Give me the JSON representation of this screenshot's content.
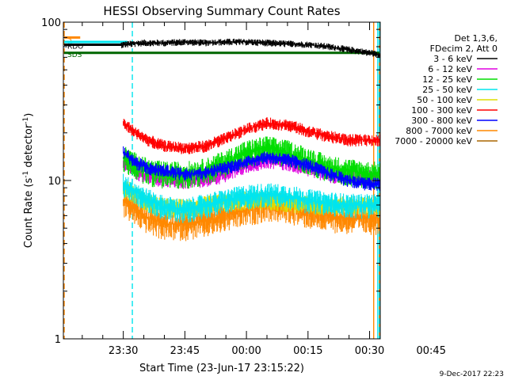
{
  "chart_data": {
    "type": "line",
    "title": "HESSI Observing Summary Count Rates",
    "xlabel": "Start Time (23-Jun-17 23:15:22)",
    "ylabel_main": "Count Rate (s",
    "ylabel_sup": "-1",
    "ylabel_tail": " detector",
    "ylabel_sup2": "-1",
    "ylabel_close": ")",
    "yscale": "log",
    "ylim": [
      1,
      100
    ],
    "ytick_labels": [
      {
        "value": 1,
        "label": "1"
      },
      {
        "value": 10,
        "label": "10"
      },
      {
        "value": 100,
        "label": "100"
      }
    ],
    "xlim_minutes": [
      -14.6,
      62.6
    ],
    "xtick_labels": [
      {
        "t": 0,
        "label": "23:30"
      },
      {
        "t": 15,
        "label": "23:45"
      },
      {
        "t": 30,
        "label": "00:00"
      },
      {
        "t": 45,
        "label": "00:15"
      },
      {
        "t": 60,
        "label": "00:30"
      },
      {
        "t": 75,
        "label": "00:45"
      }
    ],
    "legend_header": [
      "Det 1,3,6,",
      "FDecim 2, Att 0"
    ],
    "legend_position": "right",
    "series": [
      {
        "name": "3 - 6 keV",
        "color": "#000000",
        "values": [
          [
            -0.5,
            72
          ],
          [
            5,
            74
          ],
          [
            10,
            74
          ],
          [
            15,
            75
          ],
          [
            20,
            74
          ],
          [
            25,
            75
          ],
          [
            30,
            75
          ],
          [
            35,
            74
          ],
          [
            40,
            73
          ],
          [
            45,
            72
          ],
          [
            50,
            70
          ],
          [
            55,
            67
          ],
          [
            60,
            64
          ],
          [
            62.6,
            62
          ]
        ]
      },
      {
        "name": "6 - 12 keV",
        "color": "#e000e0",
        "values": [
          [
            0,
            13
          ],
          [
            3,
            11.5
          ],
          [
            6,
            10.5
          ],
          [
            10,
            10.2
          ],
          [
            15,
            10
          ],
          [
            20,
            10.2
          ],
          [
            25,
            11
          ],
          [
            30,
            12.5
          ],
          [
            35,
            13.5
          ],
          [
            40,
            13
          ],
          [
            45,
            12
          ],
          [
            50,
            11
          ],
          [
            55,
            10.5
          ],
          [
            60,
            10.5
          ],
          [
            62.6,
            10.5
          ]
        ]
      },
      {
        "name": "12 - 25 keV",
        "color": "#00dd00",
        "values": [
          [
            0,
            14
          ],
          [
            3,
            12.5
          ],
          [
            6,
            11.5
          ],
          [
            10,
            11
          ],
          [
            15,
            11
          ],
          [
            20,
            11.5
          ],
          [
            25,
            13
          ],
          [
            30,
            15
          ],
          [
            35,
            16
          ],
          [
            40,
            15
          ],
          [
            45,
            13.5
          ],
          [
            50,
            12
          ],
          [
            55,
            11.5
          ],
          [
            60,
            11
          ],
          [
            62.6,
            11
          ]
        ]
      },
      {
        "name": "25 - 50 keV",
        "color": "#00e5ee",
        "values": [
          [
            0,
            9.5
          ],
          [
            3,
            8.5
          ],
          [
            6,
            7.5
          ],
          [
            10,
            6.8
          ],
          [
            15,
            6.5
          ],
          [
            20,
            7
          ],
          [
            25,
            7.5
          ],
          [
            30,
            8
          ],
          [
            35,
            8.2
          ],
          [
            40,
            8
          ],
          [
            45,
            7.5
          ],
          [
            50,
            7.2
          ],
          [
            55,
            7
          ],
          [
            60,
            7
          ],
          [
            62.6,
            7
          ]
        ]
      },
      {
        "name": "50 - 100 keV",
        "color": "#dddd00",
        "values": [
          [
            0,
            9
          ],
          [
            3,
            8.2
          ],
          [
            6,
            7.2
          ],
          [
            10,
            6.8
          ],
          [
            15,
            6.7
          ],
          [
            20,
            7
          ],
          [
            25,
            7.3
          ],
          [
            30,
            7.5
          ],
          [
            35,
            7.5
          ],
          [
            40,
            7.3
          ],
          [
            45,
            7
          ],
          [
            50,
            7
          ],
          [
            55,
            7
          ],
          [
            60,
            7
          ],
          [
            62.6,
            7
          ]
        ]
      },
      {
        "name": "100 - 300 keV",
        "color": "#ff0000",
        "values": [
          [
            0,
            23
          ],
          [
            3,
            20
          ],
          [
            6,
            18
          ],
          [
            10,
            16.5
          ],
          [
            15,
            16
          ],
          [
            20,
            16.5
          ],
          [
            25,
            18.5
          ],
          [
            30,
            21
          ],
          [
            35,
            23
          ],
          [
            40,
            22.5
          ],
          [
            45,
            20.5
          ],
          [
            50,
            19
          ],
          [
            55,
            18
          ],
          [
            60,
            18
          ],
          [
            62.6,
            18
          ]
        ]
      },
      {
        "name": "300 - 800 keV",
        "color": "#0000ff",
        "values": [
          [
            0,
            15
          ],
          [
            3,
            13
          ],
          [
            6,
            12
          ],
          [
            10,
            11.5
          ],
          [
            15,
            11
          ],
          [
            20,
            11.2
          ],
          [
            25,
            12
          ],
          [
            30,
            13
          ],
          [
            35,
            14
          ],
          [
            40,
            13.5
          ],
          [
            45,
            12.5
          ],
          [
            50,
            11
          ],
          [
            55,
            10
          ],
          [
            60,
            9.5
          ],
          [
            62.6,
            9.5
          ]
        ]
      },
      {
        "name": "800 - 7000 keV",
        "color": "#ff8800",
        "values": [
          [
            0,
            7.5
          ],
          [
            3,
            6.5
          ],
          [
            6,
            5.8
          ],
          [
            10,
            5.3
          ],
          [
            15,
            5.3
          ],
          [
            20,
            5.5
          ],
          [
            25,
            6
          ],
          [
            30,
            6.5
          ],
          [
            35,
            7
          ],
          [
            40,
            6.8
          ],
          [
            45,
            6.3
          ],
          [
            50,
            6
          ],
          [
            55,
            5.8
          ],
          [
            60,
            5.8
          ],
          [
            62.6,
            5.8
          ]
        ]
      },
      {
        "name": "7000 - 20000 keV",
        "color": "#aa6600",
        "values": []
      }
    ],
    "flags": [
      {
        "label": "S",
        "color": "#ff8800",
        "t0": -30.0,
        "t1": -10.5,
        "y": 80
      },
      {
        "label": "N",
        "color": "#00e5ee",
        "t0": -30.0,
        "t1": 1.0,
        "y": 75
      },
      {
        "label": "RDO",
        "color": "#000000",
        "t0": -14.5,
        "t1": -0.5,
        "y": 72
      },
      {
        "label": "SDS",
        "color": "#006600",
        "t0": -30.0,
        "t1": 63,
        "y": 64
      }
    ],
    "vlines": [
      {
        "t": -21.5,
        "color": "#ff8800",
        "style": "dashed"
      },
      {
        "t": 2.2,
        "color": "#00e5ee",
        "style": "dashed"
      },
      {
        "t": 61.0,
        "color": "#ff8800",
        "style": "solid"
      },
      {
        "t": 62.0,
        "color": "#00e5ee",
        "style": "solid"
      },
      {
        "t": 79.0,
        "color": "#ff8800",
        "style": "solid"
      },
      {
        "t": 79.5,
        "color": "#00e5ee",
        "style": "dashed"
      }
    ],
    "grid": false
  },
  "footer": {
    "timestamp": "9-Dec-2017 22:23"
  }
}
